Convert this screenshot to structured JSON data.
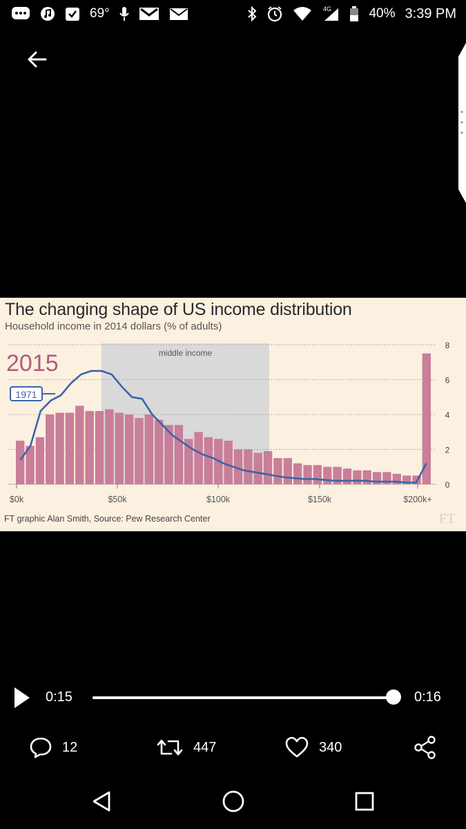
{
  "status_bar": {
    "temperature": "69°",
    "battery": "40%",
    "time": "3:39 PM",
    "network": "4G"
  },
  "chart": {
    "title": "The changing shape of US income distribution",
    "subtitle": "Household income in 2014 dollars (% of adults)",
    "year_2015_label": "2015",
    "year_1971_label": "1971",
    "band_label": "middle income",
    "source": "FT graphic Alan Smith, Source: Pew Research Center",
    "ft_logo": "FT",
    "colors": {
      "bar": "#c97e99",
      "line": "#3d63a8",
      "band": "#d9d9d9",
      "background": "#fcf0e1"
    }
  },
  "chart_data": {
    "type": "bar",
    "title": "The changing shape of US income distribution",
    "subtitle": "Household income in 2014 dollars (% of adults)",
    "x_tick_labels": [
      "$0k",
      "$50k",
      "$100k",
      "$150k",
      "$200k+"
    ],
    "x_tick_positions": [
      0,
      5,
      10,
      15,
      20
    ],
    "y_ticks": [
      0,
      2,
      4,
      6,
      8
    ],
    "ylim": [
      0,
      8
    ],
    "highlight_band": {
      "label": "middle income",
      "from_bin": 4,
      "to_bin": 12.5
    },
    "series": [
      {
        "name": "2015",
        "kind": "bar",
        "values": [
          2.5,
          2.2,
          2.7,
          4.0,
          4.1,
          4.1,
          4.5,
          4.2,
          4.2,
          4.3,
          4.1,
          4.0,
          3.8,
          4.0,
          3.7,
          3.4,
          3.4,
          2.6,
          3.0,
          2.7,
          2.6,
          2.5,
          2.0,
          2.0,
          1.8,
          1.9,
          1.5,
          1.5,
          1.2,
          1.1,
          1.1,
          1.0,
          1.0,
          0.9,
          0.8,
          0.8,
          0.7,
          0.7,
          0.6,
          0.5,
          0.5,
          7.5
        ],
        "bin_width_k": 5
      },
      {
        "name": "1971",
        "kind": "line",
        "values": [
          1.4,
          2.2,
          4.2,
          4.8,
          5.1,
          5.8,
          6.3,
          6.5,
          6.5,
          6.3,
          5.6,
          5.0,
          4.9,
          4.0,
          3.4,
          2.8,
          2.4,
          2.0,
          1.7,
          1.5,
          1.2,
          1.0,
          0.8,
          0.7,
          0.6,
          0.5,
          0.4,
          0.35,
          0.3,
          0.3,
          0.25,
          0.2,
          0.2,
          0.2,
          0.2,
          0.15,
          0.15,
          0.15,
          0.1,
          0.1,
          1.2
        ]
      }
    ],
    "grid": true,
    "legend": "inline-labels"
  },
  "player": {
    "current_time": "0:15",
    "total_time": "0:16",
    "progress": 0.98
  },
  "actions": {
    "replies": "12",
    "retweets": "447",
    "likes": "340"
  },
  "icons": {
    "back": "back-arrow-icon",
    "play": "play-icon",
    "reply": "reply-icon",
    "retweet": "retweet-icon",
    "like": "heart-icon",
    "share": "share-icon"
  }
}
